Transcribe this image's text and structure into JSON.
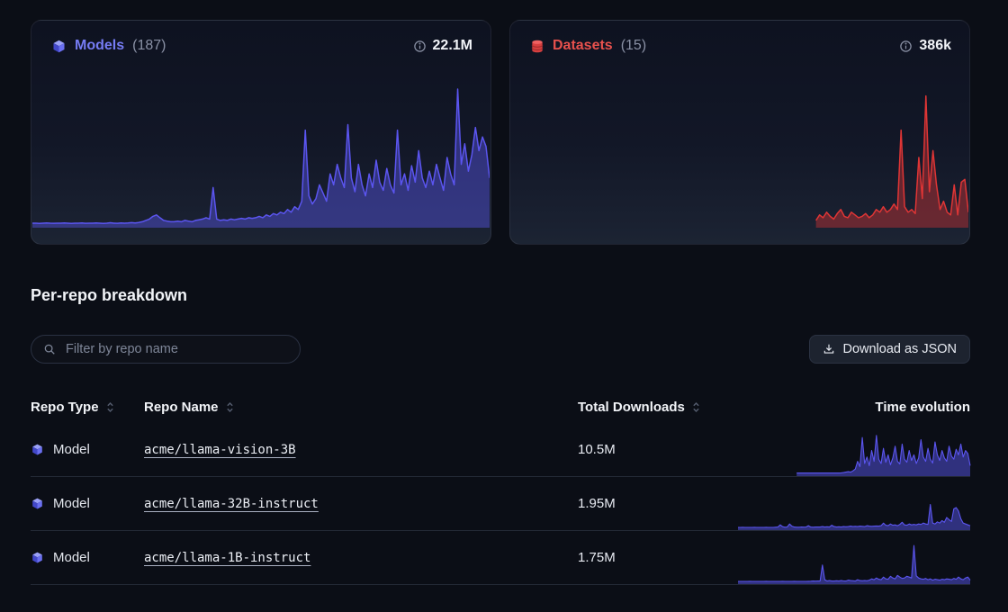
{
  "cards": [
    {
      "title": "Models",
      "count": "(187)",
      "total": "22.1M",
      "accent": "#767cf4"
    },
    {
      "title": "Datasets",
      "count": "(15)",
      "total": "386k",
      "accent": "#e8514d"
    }
  ],
  "section": {
    "title": "Per-repo breakdown"
  },
  "filter": {
    "placeholder": "Filter by repo name",
    "value": ""
  },
  "download_button": {
    "label": "Download as JSON"
  },
  "table": {
    "columns": [
      {
        "label": "Repo Type",
        "sortable": true
      },
      {
        "label": "Repo Name",
        "sortable": true
      },
      {
        "label": "Total Downloads",
        "sortable": true
      },
      {
        "label": "Time evolution",
        "sortable": false
      }
    ],
    "rows": [
      {
        "type": "Model",
        "name": "acme/llama-vision-3B",
        "downloads": "10.5M"
      },
      {
        "type": "Model",
        "name": "acme/llama-32B-instruct",
        "downloads": "1.95M"
      },
      {
        "type": "Model",
        "name": "acme/llama-1B-instruct",
        "downloads": "1.75M"
      }
    ]
  },
  "chart_data": [
    {
      "type": "area",
      "name": "Models downloads over time",
      "total_label": "22.1M",
      "color": "#5b55f0",
      "fill": "rgba(90,87,240,0.42)",
      "ylim": [
        0,
        100
      ],
      "values": [
        2,
        2,
        1.8,
        2,
        2.2,
        2,
        1.9,
        2,
        2,
        2.1,
        2,
        1.8,
        2,
        2,
        2.2,
        1.9,
        2,
        2,
        2.1,
        2,
        1.8,
        2,
        2.3,
        2,
        1.9,
        2.2,
        2,
        2.1,
        2.4,
        2.2,
        2.5,
        3,
        4,
        5,
        7,
        8,
        6,
        4,
        3.5,
        3,
        3,
        3.5,
        3,
        4,
        3.5,
        3,
        4,
        4.5,
        5,
        6,
        5,
        28,
        5,
        4,
        4.5,
        4,
        5,
        4.5,
        5,
        5.5,
        5,
        6,
        5.5,
        6,
        7,
        6,
        8,
        7,
        9,
        8,
        10,
        9,
        12,
        10,
        14,
        12,
        18,
        70,
        22,
        16,
        20,
        30,
        24,
        18,
        38,
        30,
        45,
        35,
        28,
        74,
        35,
        25,
        45,
        30,
        22,
        38,
        28,
        48,
        32,
        26,
        42,
        30,
        24,
        70,
        30,
        38,
        26,
        44,
        32,
        55,
        35,
        28,
        40,
        30,
        45,
        35,
        26,
        50,
        38,
        30,
        100,
        45,
        60,
        40,
        52,
        72,
        55,
        65,
        58,
        35
      ]
    },
    {
      "type": "area",
      "name": "Datasets downloads over time",
      "total_label": "386k",
      "color": "#df3535",
      "fill": "rgba(223,53,53,0.40)",
      "ylim": [
        0,
        100
      ],
      "values": [
        null,
        null,
        null,
        null,
        null,
        null,
        null,
        null,
        null,
        null,
        null,
        null,
        null,
        null,
        null,
        null,
        null,
        null,
        null,
        null,
        null,
        null,
        null,
        null,
        null,
        null,
        null,
        null,
        null,
        null,
        null,
        null,
        null,
        null,
        null,
        null,
        null,
        null,
        null,
        null,
        null,
        null,
        null,
        null,
        null,
        null,
        null,
        null,
        null,
        null,
        null,
        null,
        null,
        null,
        null,
        null,
        null,
        null,
        null,
        null,
        null,
        null,
        null,
        null,
        null,
        null,
        null,
        null,
        null,
        null,
        null,
        null,
        null,
        null,
        null,
        null,
        null,
        null,
        null,
        null,
        null,
        null,
        null,
        null,
        null,
        null,
        4,
        8,
        6,
        10,
        7,
        5,
        9,
        12,
        7,
        6,
        10,
        8,
        6,
        7,
        9,
        6,
        8,
        12,
        10,
        14,
        10,
        12,
        16,
        12,
        70,
        14,
        10,
        12,
        9,
        50,
        20,
        95,
        25,
        55,
        30,
        12,
        18,
        10,
        8,
        30,
        8,
        32,
        34,
        10
      ]
    },
    {
      "type": "area",
      "name": "acme/llama-vision-3B time evolution",
      "total_label": "10.5M",
      "color": "#5b55f0",
      "fill": "rgba(90,87,240,0.48)",
      "ylim": [
        0,
        100
      ],
      "values": [
        null,
        null,
        null,
        null,
        null,
        null,
        null,
        null,
        null,
        null,
        null,
        null,
        null,
        null,
        null,
        null,
        null,
        null,
        null,
        null,
        null,
        null,
        null,
        null,
        null,
        3,
        3,
        3.2,
        3,
        3,
        3.1,
        3,
        3,
        3.2,
        3,
        3,
        3,
        3.1,
        3,
        3.2,
        3,
        3,
        3.1,
        3,
        3.3,
        4,
        5,
        6,
        5,
        8,
        12,
        30,
        18,
        85,
        25,
        40,
        20,
        55,
        30,
        90,
        35,
        25,
        60,
        28,
        45,
        22,
        38,
        65,
        30,
        24,
        70,
        35,
        28,
        55,
        32,
        45,
        25,
        38,
        80,
        40,
        30,
        60,
        35,
        26,
        75,
        45,
        32,
        55,
        38,
        30,
        65,
        42,
        35,
        58,
        45,
        70,
        40,
        55,
        48,
        20
      ]
    },
    {
      "type": "area",
      "name": "acme/llama-32B-instruct time evolution",
      "total_label": "1.95M",
      "color": "#5b55f0",
      "fill": "rgba(90,87,240,0.48)",
      "ylim": [
        0,
        100
      ],
      "values": [
        2,
        2,
        2.2,
        2,
        2.1,
        2,
        2,
        2.3,
        2,
        2.1,
        2,
        2,
        2.2,
        2,
        2,
        2.1,
        2.5,
        3,
        8,
        4,
        2.5,
        3,
        10,
        5,
        3,
        2.5,
        2.5,
        3,
        2.8,
        3,
        6,
        3,
        2.5,
        3,
        3.2,
        3,
        4,
        3,
        3.5,
        3,
        7,
        4,
        3,
        3.5,
        3,
        4,
        3.5,
        4,
        5,
        4,
        4.5,
        4,
        5,
        4.5,
        4,
        6,
        5,
        4.5,
        5,
        5.5,
        5,
        6,
        12,
        7,
        6,
        10,
        7,
        8,
        6,
        9,
        14,
        8,
        7,
        10,
        8,
        9,
        8,
        10,
        9,
        12,
        10,
        9,
        55,
        12,
        10,
        15,
        12,
        18,
        14,
        25,
        20,
        16,
        45,
        48,
        40,
        22,
        12,
        10,
        8,
        6
      ]
    },
    {
      "type": "area",
      "name": "acme/llama-1B-instruct time evolution",
      "total_label": "1.75M",
      "color": "#5b55f0",
      "fill": "rgba(90,87,240,0.48)",
      "ylim": [
        0,
        100
      ],
      "values": [
        2,
        2,
        2.1,
        2,
        2,
        2.2,
        2,
        2,
        2.1,
        2,
        2,
        2,
        2.2,
        2,
        2,
        2.1,
        2,
        2,
        2,
        2.2,
        2,
        2.1,
        2,
        2,
        2.2,
        2,
        2,
        2.1,
        2,
        2,
        2.2,
        2.5,
        3,
        2.8,
        3,
        3,
        40,
        6,
        3,
        4,
        3,
        3,
        3.5,
        3,
        4,
        3.2,
        3,
        5,
        4,
        3.5,
        3,
        6,
        4,
        3.5,
        4,
        3.5,
        5,
        8,
        6,
        10,
        7,
        6,
        12,
        8,
        7,
        14,
        10,
        8,
        16,
        12,
        9,
        10,
        14,
        12,
        10,
        85,
        15,
        10,
        8,
        7,
        9,
        6,
        8,
        5,
        7,
        6,
        5,
        7,
        6,
        8,
        7,
        6,
        9,
        7,
        12,
        8,
        6,
        10,
        12,
        5
      ]
    }
  ]
}
